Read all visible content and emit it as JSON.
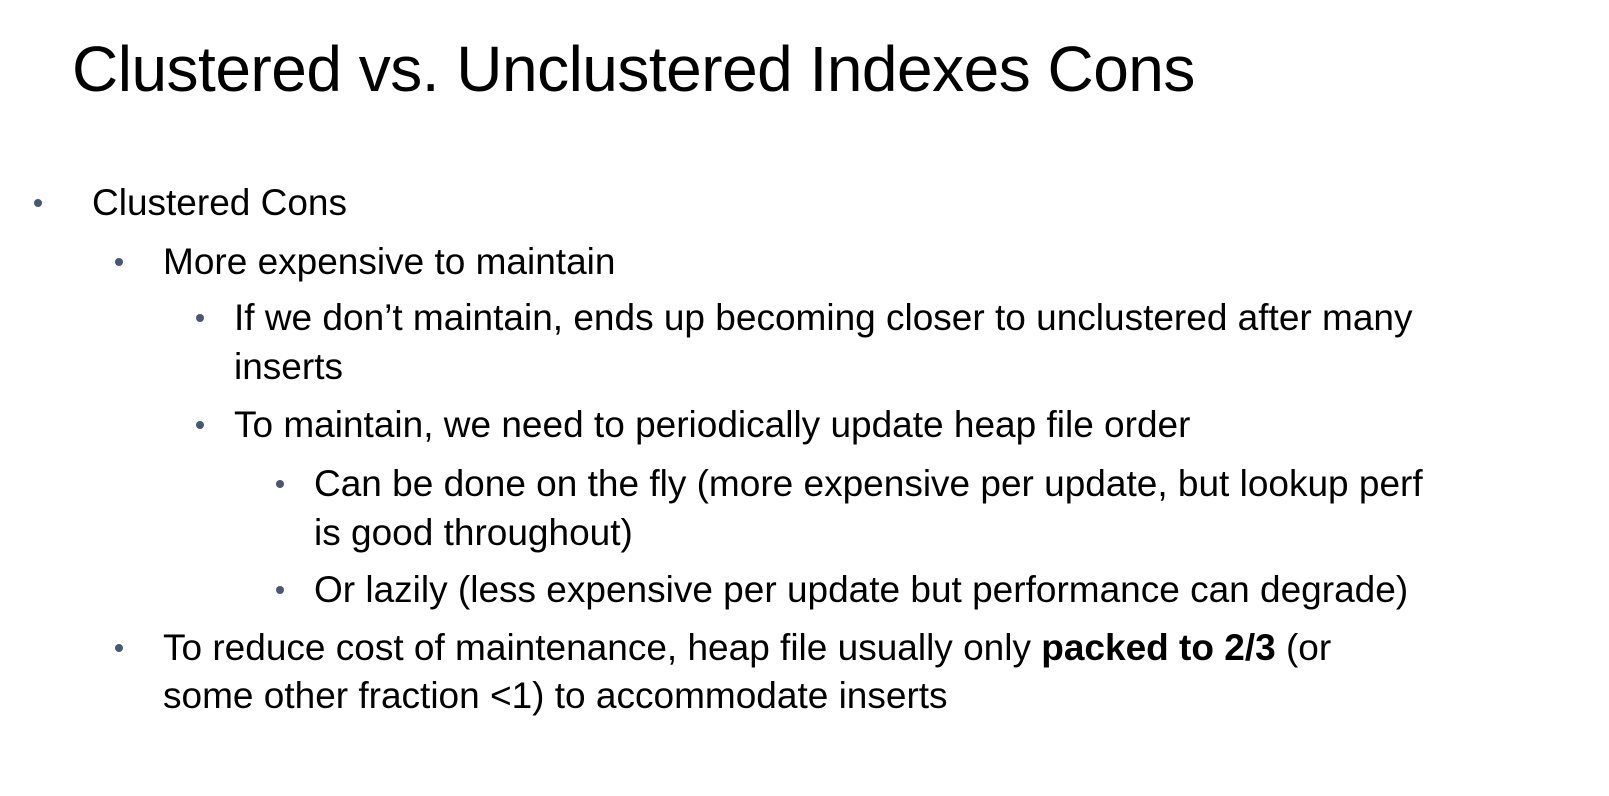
{
  "slide": {
    "title": "Clustered vs. Unclustered Indexes Cons",
    "bullets": [
      {
        "level": 1,
        "lines": [
          "Clustered Cons"
        ]
      },
      {
        "level": 2,
        "lines": [
          "More expensive to maintain"
        ]
      },
      {
        "level": 3,
        "lines": [
          "If we don’t maintain, ends up becoming closer to unclustered after many",
          "inserts"
        ]
      },
      {
        "level": 3,
        "lines": [
          "To maintain, we need to periodically update heap file order"
        ]
      },
      {
        "level": 4,
        "lines": [
          "Can be done on the fly (more expensive per update, but lookup perf",
          "is good throughout)"
        ]
      },
      {
        "level": 4,
        "lines": [
          "Or lazily (less expensive per update but performance can degrade)"
        ]
      },
      {
        "level": 2,
        "line1_before": "To reduce cost of maintenance, heap file usually only ",
        "line1_bold": "packed to 2/3",
        "line1_after": " (or",
        "line2": "some other fraction <1) to accommodate inserts"
      }
    ]
  },
  "colors": {
    "bullet_dot": "#4a5770",
    "text": "#000000",
    "background": "#ffffff"
  }
}
